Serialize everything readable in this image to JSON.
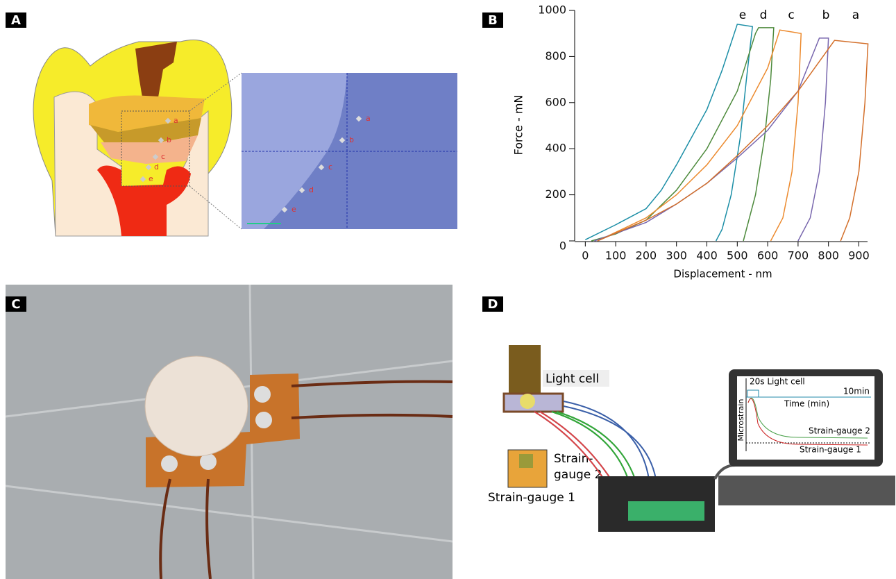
{
  "panels": {
    "a": "A",
    "b": "B",
    "c": "C",
    "d": "D"
  },
  "panel_a": {
    "schematic_labels": [
      "a",
      "b",
      "c",
      "d",
      "e"
    ],
    "photo_labels": [
      "a",
      "b",
      "c",
      "d",
      "e"
    ]
  },
  "chart_data": {
    "type": "line",
    "x_label": "Displacement - nm",
    "y_label": "Force - mN",
    "xlim": [
      -35,
      940
    ],
    "ylim": [
      0,
      1000
    ],
    "xticks": [
      0,
      100,
      200,
      300,
      400,
      500,
      600,
      700,
      800,
      900
    ],
    "yticks": [
      0,
      200,
      400,
      600,
      800,
      1000
    ],
    "series": [
      {
        "name": "e",
        "color": "#1b8ea6",
        "x": [
          0,
          100,
          200,
          250,
          300,
          350,
          400,
          450,
          500,
          550,
          530,
          510,
          480,
          450,
          430
        ],
        "values": [
          5,
          70,
          140,
          220,
          330,
          450,
          570,
          740,
          940,
          930,
          700,
          450,
          200,
          50,
          0
        ]
      },
      {
        "name": "d",
        "color": "#4d8a3c",
        "x": [
          20,
          100,
          200,
          300,
          400,
          500,
          560,
          570,
          620,
          610,
          590,
          560,
          520
        ],
        "values": [
          0,
          30,
          90,
          220,
          400,
          650,
          900,
          925,
          925,
          700,
          450,
          200,
          0
        ]
      },
      {
        "name": "c",
        "color": "#ec8a2e",
        "x": [
          40,
          200,
          300,
          400,
          500,
          600,
          640,
          710,
          700,
          680,
          650,
          610
        ],
        "values": [
          0,
          100,
          200,
          330,
          500,
          750,
          915,
          900,
          600,
          300,
          100,
          0
        ]
      },
      {
        "name": "b",
        "color": "#7866ad",
        "x": [
          30,
          200,
          300,
          400,
          500,
          600,
          700,
          770,
          800,
          790,
          770,
          740,
          700
        ],
        "values": [
          0,
          80,
          160,
          250,
          360,
          480,
          650,
          880,
          880,
          600,
          300,
          100,
          0
        ]
      },
      {
        "name": "a",
        "color": "#d36f2a",
        "x": [
          40,
          200,
          300,
          400,
          500,
          600,
          700,
          820,
          930,
          920,
          900,
          870,
          840
        ],
        "values": [
          0,
          90,
          160,
          250,
          370,
          500,
          650,
          870,
          855,
          600,
          300,
          100,
          0
        ]
      }
    ]
  },
  "panel_d": {
    "light_cell": "Light cell",
    "strain_gauge_2": [
      "Strain-",
      "gauge 2"
    ],
    "strain_gauge_1": "Strain-gauge 1",
    "screen": {
      "light_label": "20s Light cell",
      "end_label": "10min",
      "x_label": "Time (min)",
      "y_label": "Microstrain",
      "curve_2": "Strain-gauge 2",
      "curve_1": "Strain-gauge 1"
    }
  }
}
